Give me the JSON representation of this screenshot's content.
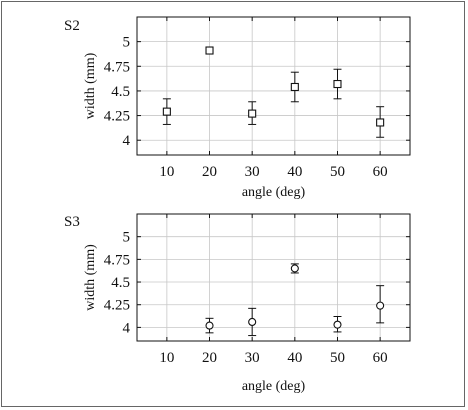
{
  "chart_data": [
    {
      "type": "scatter",
      "title": "S2",
      "xlabel": "angle (deg)",
      "ylabel": "width (mm)",
      "xlim": [
        3,
        67
      ],
      "ylim": [
        3.85,
        5.25
      ],
      "xticks": [
        10,
        20,
        30,
        40,
        50,
        60
      ],
      "xtick_labels": [
        "10",
        "20",
        "30",
        "40",
        "50",
        "60"
      ],
      "yticks": [
        4,
        4.25,
        4.5,
        4.75,
        5
      ],
      "ytick_labels": [
        "4",
        "4.25",
        "4.5",
        "4.75",
        "5"
      ],
      "grid": true,
      "marker": "square",
      "points": [
        {
          "x": 10,
          "y": 4.29,
          "err_low": 4.16,
          "err_high": 4.42
        },
        {
          "x": 20,
          "y": 4.91,
          "err_low": 4.89,
          "err_high": 4.93
        },
        {
          "x": 30,
          "y": 4.27,
          "err_low": 4.16,
          "err_high": 4.39
        },
        {
          "x": 40,
          "y": 4.54,
          "err_low": 4.39,
          "err_high": 4.69
        },
        {
          "x": 50,
          "y": 4.57,
          "err_low": 4.42,
          "err_high": 4.72
        },
        {
          "x": 60,
          "y": 4.18,
          "err_low": 4.03,
          "err_high": 4.34
        }
      ]
    },
    {
      "type": "scatter",
      "title": "S3",
      "xlabel": "angle (deg)",
      "ylabel": "width (mm)",
      "xlim": [
        3,
        67
      ],
      "ylim": [
        3.85,
        5.25
      ],
      "xticks": [
        10,
        20,
        30,
        40,
        50,
        60
      ],
      "xtick_labels": [
        "10",
        "20",
        "30",
        "40",
        "50",
        "60"
      ],
      "yticks": [
        4,
        4.25,
        4.5,
        4.75,
        5
      ],
      "ytick_labels": [
        "4",
        "4.25",
        "4.5",
        "4.75",
        "5"
      ],
      "grid": true,
      "marker": "circle",
      "points": [
        {
          "x": 20,
          "y": 4.02,
          "err_low": 3.94,
          "err_high": 4.1
        },
        {
          "x": 30,
          "y": 4.06,
          "err_low": 3.91,
          "err_high": 4.21
        },
        {
          "x": 40,
          "y": 4.65,
          "err_low": 4.6,
          "err_high": 4.7
        },
        {
          "x": 50,
          "y": 4.03,
          "err_low": 3.95,
          "err_high": 4.12
        },
        {
          "x": 60,
          "y": 4.24,
          "err_low": 4.05,
          "err_high": 4.46
        }
      ]
    }
  ]
}
